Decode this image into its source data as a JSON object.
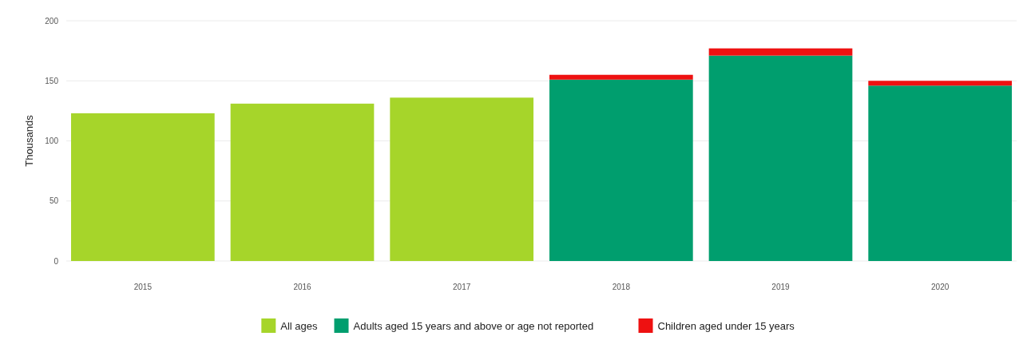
{
  "chart_data": {
    "type": "bar",
    "stacked": true,
    "ylabel": "Thousands",
    "categories": [
      "2015",
      "2016",
      "2017",
      "2018",
      "2019",
      "2020"
    ],
    "series": [
      {
        "name": "All ages",
        "color": "#a6d52a",
        "values": [
          123,
          131,
          136,
          null,
          null,
          null
        ]
      },
      {
        "name": "Adults aged 15 years and above or age not reported",
        "color": "#009e6e",
        "values": [
          null,
          null,
          null,
          151,
          171,
          146
        ]
      },
      {
        "name": "Children aged under 15 years",
        "color": "#ee1111",
        "values": [
          null,
          null,
          null,
          4,
          6,
          4
        ]
      }
    ],
    "ylim": [
      0,
      200
    ],
    "yticks": [
      0,
      50,
      100,
      150,
      200
    ],
    "grid": "y",
    "legend": "bottom"
  }
}
